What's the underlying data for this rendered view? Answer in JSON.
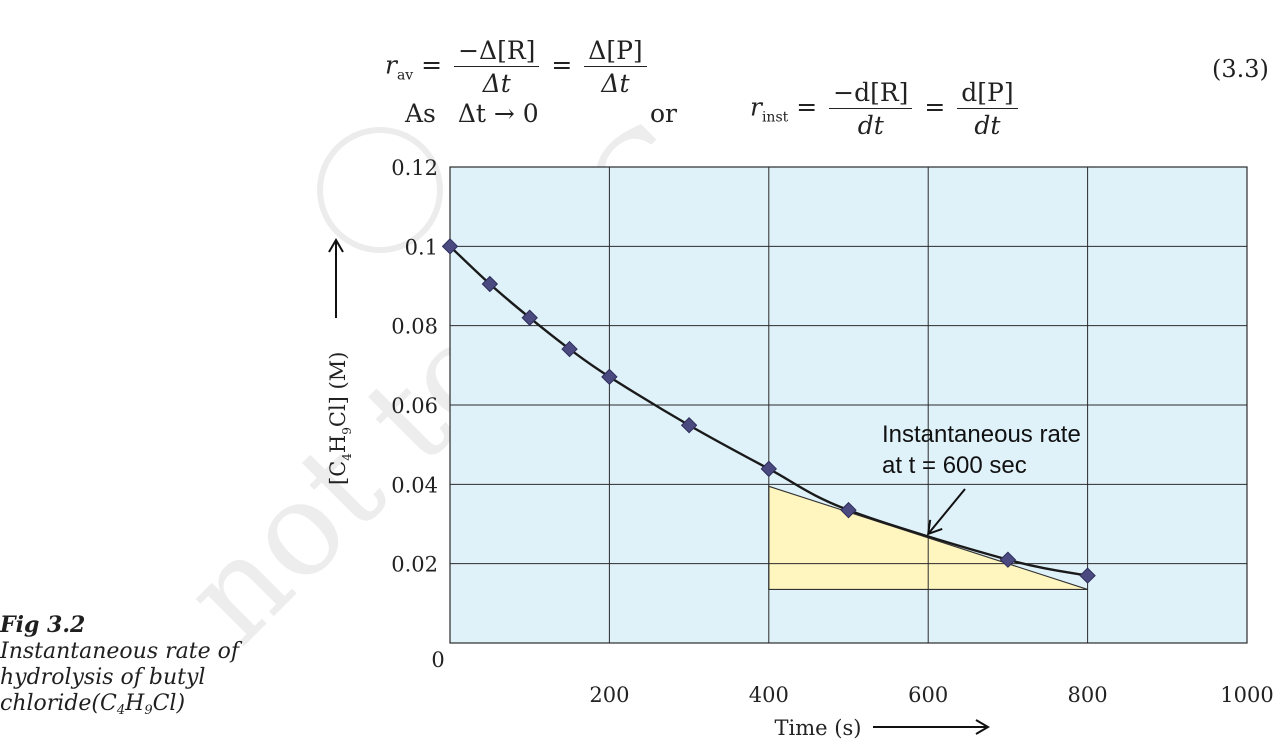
{
  "equations": {
    "average_rate": {
      "lhs_symbol": "r",
      "lhs_sub": "av",
      "frac1_num": "−Δ[R]",
      "frac1_den": "Δt",
      "frac2_num": "Δ[P]",
      "frac2_den": "Δt",
      "number": "(3.3)"
    },
    "instantaneous_rate": {
      "as_text": "As",
      "limit": "Δt → 0",
      "or_text": "or",
      "lhs_symbol": "r",
      "lhs_sub": "inst",
      "frac1_num": "−d[R]",
      "frac1_den": "dt",
      "frac2_num": "d[P]",
      "frac2_den": "dt"
    }
  },
  "caption": {
    "title": "Fig 3.2",
    "body_before_formula": "Instantaneous rate of hydrolysis of butyl chloride(C",
    "sub1": "4",
    "mid": "H",
    "sub2": "9",
    "body_after_formula": "Cl)"
  },
  "colors": {
    "plot_background": "#dff1f9",
    "tangent_triangle_fill": "#fff5bf",
    "curve": "#1a1a1a",
    "markers": "#4a4a80",
    "grid": "#2b2b2b"
  },
  "chart_data": {
    "type": "scatter",
    "title": "",
    "xlabel": "Time (s)",
    "ylabel": "[C4H9Cl] (M)",
    "xlim": [
      0,
      1000
    ],
    "ylim": [
      0,
      0.12
    ],
    "x_ticks": [
      0,
      200,
      400,
      600,
      800,
      1000
    ],
    "y_ticks": [
      0.02,
      0.04,
      0.06,
      0.08,
      0.1,
      0.12
    ],
    "x_tick_labels": [
      "0",
      "200",
      "400",
      "600",
      "800",
      "1000"
    ],
    "y_tick_labels": [
      "0.02",
      "0.04",
      "0.06",
      "0.08",
      "0.1",
      "0.12"
    ],
    "grid": true,
    "series": [
      {
        "marker": "diamond",
        "x": [
          0,
          50,
          100,
          150,
          200,
          300,
          400,
          500,
          700,
          800
        ],
        "y": [
          0.1,
          0.0905,
          0.082,
          0.0741,
          0.0671,
          0.0549,
          0.0439,
          0.0335,
          0.021,
          0.017
        ]
      }
    ],
    "tangent": {
      "at_x": 600,
      "triangle": [
        [
          400,
          0.0395
        ],
        [
          400,
          0.0135
        ],
        [
          800,
          0.0135
        ]
      ]
    },
    "annotations": [
      {
        "text": "Instantaneous rate",
        "arrow_target": [
          600,
          0.0275
        ]
      },
      {
        "text": "at t = 600 sec"
      }
    ]
  }
}
